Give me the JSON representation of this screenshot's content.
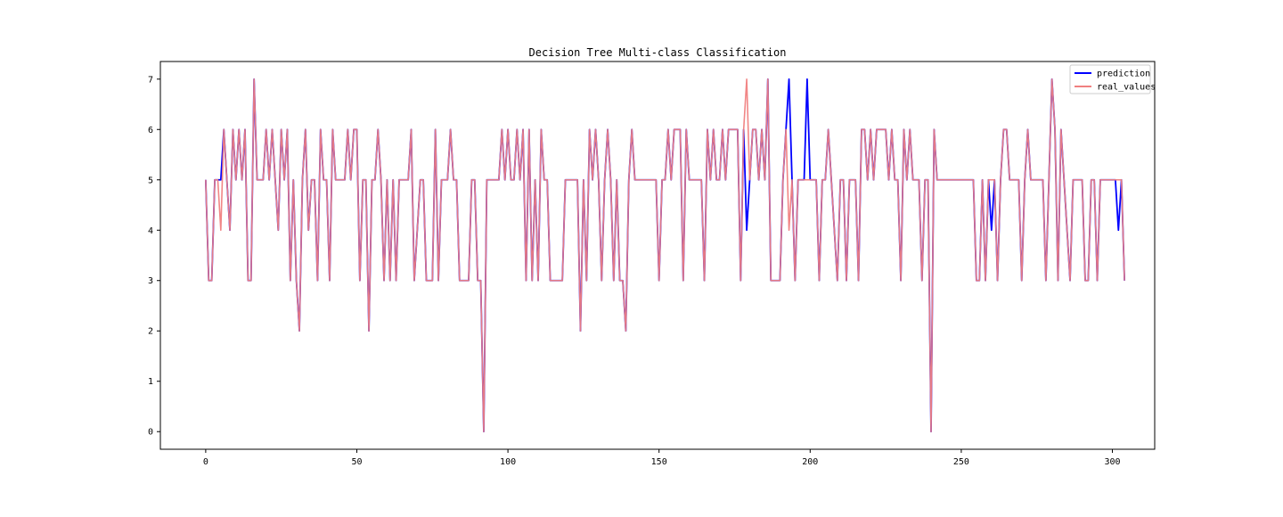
{
  "chart_data": {
    "type": "line",
    "title": "Decision Tree Multi-class Classification",
    "xlabel": "",
    "ylabel": "",
    "xlim": [
      -15,
      314
    ],
    "ylim": [
      -0.35,
      7.35
    ],
    "x_ticks": [
      0,
      50,
      100,
      150,
      200,
      250,
      300
    ],
    "y_ticks": [
      0,
      1,
      2,
      3,
      4,
      5,
      6,
      7
    ],
    "grid": false,
    "legend": {
      "placement": "top-right"
    },
    "x_start": 0,
    "series": [
      {
        "name": "prediction",
        "color": "#0000ff",
        "values": [
          5,
          3,
          3,
          5,
          5,
          5,
          6,
          5,
          4,
          6,
          5,
          6,
          5,
          6,
          3,
          3,
          7,
          5,
          5,
          5,
          6,
          5,
          6,
          5,
          4,
          6,
          5,
          6,
          3,
          5,
          3,
          2,
          5,
          6,
          4,
          5,
          5,
          3,
          6,
          5,
          5,
          3,
          6,
          5,
          5,
          5,
          5,
          6,
          5,
          6,
          6,
          3,
          5,
          5,
          2,
          5,
          5,
          6,
          5,
          3,
          5,
          3,
          5,
          3,
          5,
          5,
          5,
          5,
          6,
          3,
          4,
          5,
          5,
          3,
          3,
          3,
          6,
          3,
          5,
          5,
          5,
          6,
          5,
          5,
          3,
          3,
          3,
          3,
          5,
          5,
          3,
          3,
          0,
          5,
          5,
          5,
          5,
          5,
          6,
          5,
          6,
          5,
          5,
          6,
          5,
          6,
          3,
          6,
          3,
          5,
          3,
          6,
          5,
          5,
          3,
          3,
          3,
          3,
          3,
          5,
          5,
          5,
          5,
          5,
          2,
          5,
          3,
          6,
          5,
          6,
          5,
          3,
          5,
          6,
          5,
          3,
          5,
          3,
          3,
          2,
          5,
          6,
          5,
          5,
          5,
          5,
          5,
          5,
          5,
          5,
          3,
          5,
          5,
          6,
          5,
          6,
          6,
          6,
          3,
          6,
          5,
          5,
          5,
          5,
          5,
          3,
          6,
          5,
          6,
          5,
          5,
          6,
          5,
          6,
          6,
          6,
          6,
          3,
          6,
          4,
          5,
          6,
          6,
          5,
          6,
          5,
          7,
          3,
          3,
          3,
          3,
          5,
          6,
          7,
          5,
          3,
          5,
          5,
          5,
          7,
          5,
          5,
          5,
          3,
          5,
          5,
          6,
          5,
          4,
          3,
          5,
          5,
          3,
          5,
          5,
          5,
          3,
          6,
          6,
          5,
          6,
          5,
          6,
          6,
          6,
          6,
          5,
          6,
          5,
          5,
          3,
          6,
          5,
          6,
          5,
          5,
          5,
          3,
          5,
          5,
          0,
          6,
          5,
          5,
          5,
          5,
          5,
          5,
          5,
          5,
          5,
          5,
          5,
          5,
          5,
          3,
          3,
          5,
          3,
          5,
          4,
          5,
          3,
          5,
          6,
          6,
          5,
          5,
          5,
          5,
          3,
          5,
          6,
          5,
          5,
          5,
          5,
          5,
          3,
          5,
          7,
          6,
          3,
          6,
          5,
          4,
          3,
          5,
          5,
          5,
          5,
          3,
          3,
          5,
          5,
          3,
          5,
          5,
          5,
          5,
          5,
          5,
          4,
          5,
          3
        ]
      },
      {
        "name": "real_values",
        "color": "#f08080",
        "values": [
          5,
          3,
          3,
          5,
          5,
          4,
          6,
          5,
          4,
          6,
          5,
          6,
          5,
          6,
          3,
          3,
          7,
          5,
          5,
          5,
          6,
          5,
          6,
          5,
          4,
          6,
          5,
          6,
          3,
          5,
          3,
          2,
          5,
          6,
          4,
          5,
          5,
          3,
          6,
          5,
          5,
          3,
          6,
          5,
          5,
          5,
          5,
          6,
          5,
          6,
          6,
          3,
          5,
          5,
          2,
          5,
          5,
          6,
          5,
          3,
          5,
          3,
          5,
          3,
          5,
          5,
          5,
          5,
          6,
          3,
          4,
          5,
          5,
          3,
          3,
          3,
          6,
          3,
          5,
          5,
          5,
          6,
          5,
          5,
          3,
          3,
          3,
          3,
          5,
          5,
          3,
          3,
          0,
          5,
          5,
          5,
          5,
          5,
          6,
          5,
          6,
          5,
          5,
          6,
          5,
          6,
          3,
          6,
          3,
          5,
          3,
          6,
          5,
          5,
          3,
          3,
          3,
          3,
          3,
          5,
          5,
          5,
          5,
          5,
          2,
          5,
          3,
          6,
          5,
          6,
          5,
          3,
          5,
          6,
          5,
          3,
          5,
          3,
          3,
          2,
          5,
          6,
          5,
          5,
          5,
          5,
          5,
          5,
          5,
          5,
          3,
          5,
          5,
          6,
          5,
          6,
          6,
          6,
          3,
          6,
          5,
          5,
          5,
          5,
          5,
          3,
          6,
          5,
          6,
          5,
          5,
          6,
          5,
          6,
          6,
          6,
          6,
          3,
          6,
          7,
          5,
          6,
          6,
          5,
          6,
          5,
          7,
          3,
          3,
          3,
          3,
          5,
          6,
          4,
          5,
          3,
          5,
          5,
          5,
          5,
          5,
          5,
          5,
          3,
          5,
          5,
          6,
          5,
          4,
          3,
          5,
          5,
          3,
          5,
          5,
          5,
          3,
          6,
          6,
          5,
          6,
          5,
          6,
          6,
          6,
          6,
          5,
          6,
          5,
          5,
          3,
          6,
          5,
          6,
          5,
          5,
          5,
          3,
          5,
          5,
          0,
          6,
          5,
          5,
          5,
          5,
          5,
          5,
          5,
          5,
          5,
          5,
          5,
          5,
          5,
          3,
          3,
          5,
          3,
          5,
          5,
          5,
          3,
          5,
          6,
          6,
          5,
          5,
          5,
          5,
          3,
          5,
          6,
          5,
          5,
          5,
          5,
          5,
          3,
          5,
          7,
          6,
          3,
          6,
          5,
          4,
          3,
          5,
          5,
          5,
          5,
          3,
          3,
          5,
          5,
          3,
          5,
          5,
          5,
          5,
          5,
          5,
          5,
          5,
          3
        ]
      }
    ]
  }
}
